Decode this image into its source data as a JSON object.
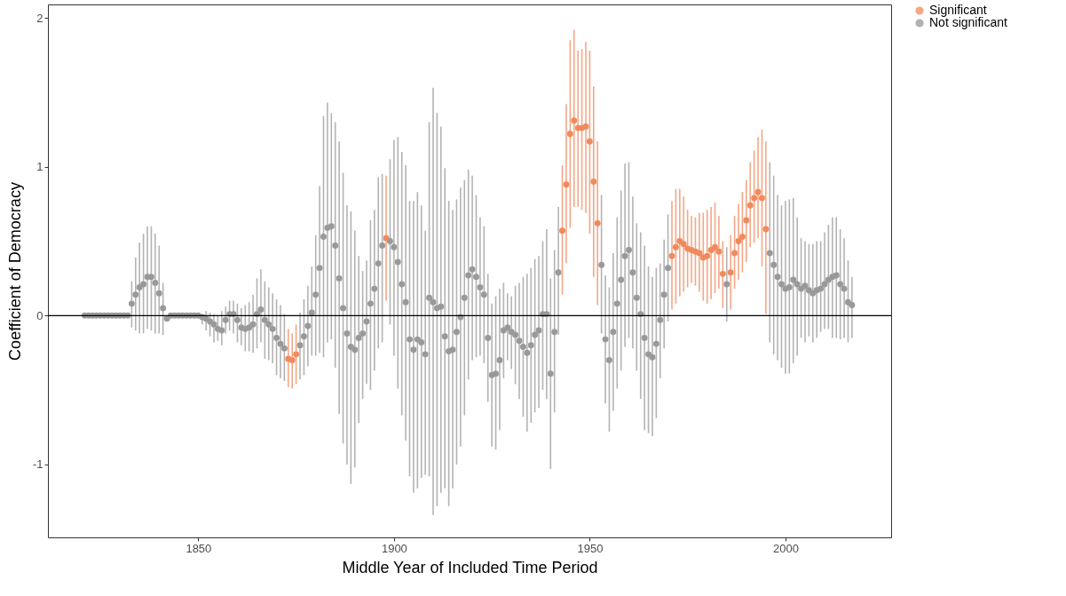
{
  "chart_data": {
    "type": "scatter",
    "xlabel": "Middle Year of Included Time Period",
    "ylabel": "Coefficient of Democracy",
    "xlim": [
      1811.6,
      2027
    ],
    "ylim": [
      -1.49,
      2.09
    ],
    "xticks": [
      1850,
      1900,
      1950,
      2000
    ],
    "yticks": [
      -1,
      0,
      1,
      2
    ],
    "grid": false,
    "legend": "right",
    "marker": "circle",
    "ref_lines": [
      {
        "axis": "y",
        "value": 0,
        "color": "#000000"
      }
    ],
    "series": [
      {
        "name": "Significant",
        "color": "#f08a5d",
        "x": [
          1873,
          1874,
          1875,
          1898,
          1943,
          1944,
          1945,
          1946,
          1947,
          1948,
          1949,
          1950,
          1951,
          1952,
          1971,
          1972,
          1973,
          1974,
          1975,
          1976,
          1977,
          1978,
          1979,
          1980,
          1981,
          1982,
          1983,
          1984,
          1986,
          1987,
          1988,
          1989,
          1990,
          1991,
          1992,
          1993,
          1994,
          1995
        ],
        "values": [
          -0.29,
          -0.3,
          -0.26,
          0.52,
          0.57,
          0.88,
          1.22,
          1.31,
          1.26,
          1.26,
          1.27,
          1.17,
          0.9,
          0.62,
          0.4,
          0.46,
          0.5,
          0.48,
          0.45,
          0.44,
          0.43,
          0.42,
          0.39,
          0.4,
          0.44,
          0.46,
          0.43,
          0.28,
          0.29,
          0.42,
          0.5,
          0.53,
          0.64,
          0.74,
          0.79,
          0.83,
          0.79,
          0.58
        ],
        "errors": [
          [
            -0.48,
            -0.09
          ],
          [
            -0.49,
            -0.12
          ],
          [
            -0.46,
            -0.06
          ],
          [
            0.1,
            0.94
          ],
          [
            0.14,
            1.01
          ],
          [
            0.35,
            1.42
          ],
          [
            0.59,
            1.85
          ],
          [
            0.73,
            1.92
          ],
          [
            0.73,
            1.78
          ],
          [
            0.71,
            1.79
          ],
          [
            0.69,
            1.84
          ],
          [
            0.55,
            1.78
          ],
          [
            0.26,
            1.54
          ],
          [
            0.07,
            1.17
          ],
          [
            0.04,
            0.77
          ],
          [
            0.08,
            0.85
          ],
          [
            0.13,
            0.85
          ],
          [
            0.16,
            0.8
          ],
          [
            0.19,
            0.71
          ],
          [
            0.22,
            0.67
          ],
          [
            0.2,
            0.66
          ],
          [
            0.16,
            0.69
          ],
          [
            0.1,
            0.69
          ],
          [
            0.08,
            0.71
          ],
          [
            0.11,
            0.73
          ],
          [
            0.15,
            0.76
          ],
          [
            0.18,
            0.67
          ],
          [
            0.05,
            0.5
          ],
          [
            0.04,
            0.54
          ],
          [
            0.18,
            0.67
          ],
          [
            0.24,
            0.75
          ],
          [
            0.29,
            0.83
          ],
          [
            0.36,
            0.91
          ],
          [
            0.46,
            1.03
          ],
          [
            0.49,
            1.11
          ],
          [
            0.52,
            1.2
          ],
          [
            0.33,
            1.25
          ],
          [
            0.01,
            1.17
          ]
        ]
      },
      {
        "name": "Not significant",
        "color": "#999999",
        "x": [
          1821,
          1822,
          1823,
          1824,
          1825,
          1826,
          1827,
          1828,
          1829,
          1830,
          1831,
          1832,
          1833,
          1834,
          1835,
          1836,
          1837,
          1838,
          1839,
          1840,
          1841,
          1842,
          1843,
          1844,
          1845,
          1846,
          1847,
          1848,
          1849,
          1850,
          1851,
          1852,
          1853,
          1854,
          1855,
          1856,
          1857,
          1858,
          1859,
          1860,
          1861,
          1862,
          1863,
          1864,
          1865,
          1866,
          1867,
          1868,
          1869,
          1870,
          1871,
          1872,
          1876,
          1877,
          1878,
          1879,
          1880,
          1881,
          1882,
          1883,
          1884,
          1885,
          1886,
          1887,
          1888,
          1889,
          1890,
          1891,
          1892,
          1893,
          1894,
          1895,
          1896,
          1897,
          1899,
          1900,
          1901,
          1902,
          1903,
          1904,
          1905,
          1906,
          1907,
          1908,
          1909,
          1910,
          1911,
          1912,
          1913,
          1914,
          1915,
          1916,
          1917,
          1918,
          1919,
          1920,
          1921,
          1922,
          1923,
          1924,
          1925,
          1926,
          1927,
          1928,
          1929,
          1930,
          1931,
          1932,
          1933,
          1934,
          1935,
          1936,
          1937,
          1938,
          1939,
          1940,
          1941,
          1942,
          1953,
          1954,
          1955,
          1956,
          1957,
          1958,
          1959,
          1960,
          1961,
          1962,
          1963,
          1964,
          1965,
          1966,
          1967,
          1968,
          1969,
          1970,
          1985,
          1996,
          1997,
          1998,
          1999,
          2000,
          2001,
          2002,
          2003,
          2004,
          2005,
          2006,
          2007,
          2008,
          2009,
          2010,
          2011,
          2012,
          2013,
          2014,
          2015,
          2016,
          2017
        ],
        "values": [
          0,
          0,
          0,
          0,
          0,
          0,
          0,
          0,
          0,
          0,
          0,
          0,
          0.08,
          0.14,
          0.19,
          0.21,
          0.26,
          0.26,
          0.22,
          0.15,
          0.05,
          -0.02,
          0,
          0,
          0,
          0,
          0,
          0,
          0,
          0,
          -0.01,
          -0.02,
          -0.04,
          -0.06,
          -0.09,
          -0.1,
          -0.03,
          0.01,
          0.01,
          -0.03,
          -0.08,
          -0.09,
          -0.08,
          -0.06,
          0.01,
          0.04,
          -0.03,
          -0.06,
          -0.09,
          -0.15,
          -0.19,
          -0.22,
          -0.2,
          -0.14,
          -0.07,
          0.02,
          0.14,
          0.32,
          0.53,
          0.59,
          0.6,
          0.47,
          0.25,
          0.05,
          -0.12,
          -0.21,
          -0.23,
          -0.15,
          -0.12,
          -0.04,
          0.08,
          0.18,
          0.35,
          0.47,
          0.5,
          0.46,
          0.36,
          0.21,
          0.09,
          -0.16,
          -0.23,
          -0.16,
          -0.18,
          -0.26,
          0.12,
          0.09,
          0.05,
          0.06,
          -0.14,
          -0.24,
          -0.23,
          -0.11,
          -0.01,
          0.12,
          0.27,
          0.31,
          0.26,
          0.19,
          0.14,
          -0.15,
          -0.4,
          -0.39,
          -0.3,
          -0.1,
          -0.08,
          -0.11,
          -0.13,
          -0.17,
          -0.21,
          -0.25,
          -0.2,
          -0.13,
          -0.1,
          0.01,
          0.01,
          -0.39,
          -0.11,
          0.29,
          0.34,
          -0.16,
          -0.3,
          -0.11,
          0.08,
          0.24,
          0.4,
          0.44,
          0.29,
          0.12,
          0.01,
          -0.15,
          -0.26,
          -0.28,
          -0.19,
          -0.03,
          0.14,
          0.32,
          0.21,
          0.42,
          0.34,
          0.26,
          0.21,
          0.18,
          0.19,
          0.24,
          0.21,
          0.18,
          0.2,
          0.17,
          0.15,
          0.17,
          0.18,
          0.21,
          0.24,
          0.26,
          0.27,
          0.21,
          0.18,
          0.09,
          0.07
        ],
        "errors": [
          null,
          null,
          null,
          null,
          null,
          null,
          null,
          null,
          null,
          null,
          null,
          null,
          [
            -0.08,
            0.23
          ],
          [
            -0.1,
            0.39
          ],
          [
            -0.12,
            0.49
          ],
          [
            -0.12,
            0.55
          ],
          [
            -0.09,
            0.6
          ],
          [
            -0.1,
            0.6
          ],
          [
            -0.12,
            0.55
          ],
          [
            -0.12,
            0.47
          ],
          [
            -0.13,
            0.22
          ],
          null,
          null,
          null,
          null,
          null,
          null,
          null,
          null,
          null,
          [
            -0.06,
            0.01
          ],
          [
            -0.1,
            0.03
          ],
          [
            -0.14,
            0.02
          ],
          [
            -0.18,
            0.01
          ],
          [
            -0.17,
            0
          ],
          [
            -0.2,
            0.03
          ],
          [
            -0.12,
            0.06
          ],
          [
            -0.1,
            0.1
          ],
          [
            -0.12,
            0.1
          ],
          [
            -0.18,
            0.08
          ],
          [
            -0.2,
            0.05
          ],
          [
            -0.24,
            0.07
          ],
          [
            -0.24,
            0.09
          ],
          [
            -0.25,
            0.14
          ],
          [
            -0.22,
            0.25
          ],
          [
            -0.18,
            0.31
          ],
          [
            -0.29,
            0.23
          ],
          [
            -0.3,
            0.19
          ],
          [
            -0.32,
            0.15
          ],
          [
            -0.4,
            0.11
          ],
          [
            -0.42,
            0.07
          ],
          [
            -0.44,
            0.01
          ],
          [
            -0.43,
            0.02
          ],
          [
            -0.4,
            0.11
          ],
          [
            -0.34,
            0.2
          ],
          [
            -0.27,
            0.33
          ],
          [
            -0.27,
            0.54
          ],
          [
            -0.25,
            0.87
          ],
          [
            -0.28,
            1.34
          ],
          [
            -0.18,
            1.43
          ],
          [
            -0.16,
            1.36
          ],
          [
            -0.35,
            1.3
          ],
          [
            -0.66,
            1.17
          ],
          [
            -0.86,
            0.96
          ],
          [
            -1.0,
            0.74
          ],
          [
            -1.13,
            0.7
          ],
          [
            -1.02,
            0.57
          ],
          [
            -0.72,
            0.4
          ],
          [
            -0.56,
            0.3
          ],
          [
            -0.46,
            0.37
          ],
          [
            -0.5,
            0.64
          ],
          [
            -0.37,
            0.71
          ],
          [
            -0.22,
            0.93
          ],
          [
            -0.18,
            0.95
          ],
          [
            -0.06,
            1.05
          ],
          [
            -0.27,
            1.18
          ],
          [
            -0.49,
            1.2
          ],
          [
            -0.67,
            1.1
          ],
          [
            -0.84,
            1.01
          ],
          [
            -1.08,
            0.77
          ],
          [
            -1.19,
            0.77
          ],
          [
            -1.16,
            0.83
          ],
          [
            -1.09,
            0.74
          ],
          [
            -1.07,
            0.57
          ],
          [
            -1.08,
            1.3
          ],
          [
            -1.34,
            1.53
          ],
          [
            -1.28,
            1.36
          ],
          [
            -1.19,
            1.27
          ],
          [
            -1.16,
            0.99
          ],
          [
            -1.28,
            0.77
          ],
          [
            -1.16,
            0.71
          ],
          [
            -1.0,
            0.78
          ],
          [
            -0.88,
            0.86
          ],
          [
            -0.67,
            0.91
          ],
          [
            -0.43,
            0.98
          ],
          [
            -0.3,
            0.94
          ],
          [
            -0.28,
            0.81
          ],
          [
            -0.27,
            0.66
          ],
          [
            -0.32,
            0.6
          ],
          [
            -0.58,
            0.28
          ],
          [
            -0.88,
            0.08
          ],
          [
            -0.9,
            0.13
          ],
          [
            -0.77,
            0.18
          ],
          [
            -0.42,
            0.22
          ],
          [
            -0.3,
            0.15
          ],
          [
            -0.36,
            0.13
          ],
          [
            -0.46,
            0.2
          ],
          [
            -0.56,
            0.22
          ],
          [
            -0.68,
            0.26
          ],
          [
            -0.78,
            0.28
          ],
          [
            -0.72,
            0.32
          ],
          [
            -0.65,
            0.38
          ],
          [
            -0.62,
            0.4
          ],
          [
            -0.5,
            0.5
          ],
          [
            -0.56,
            0.58
          ],
          [
            -1.03,
            0.25
          ],
          [
            -0.65,
            0.44
          ],
          [
            -0.13,
            0.73
          ],
          [
            -0.12,
            0.81
          ],
          [
            -0.59,
            0.27
          ],
          [
            -0.78,
            0.19
          ],
          [
            -0.64,
            0.42
          ],
          [
            -0.49,
            0.66
          ],
          [
            -0.37,
            0.84
          ],
          [
            -0.21,
            1.02
          ],
          [
            -0.15,
            1.03
          ],
          [
            -0.22,
            0.8
          ],
          [
            -0.37,
            0.62
          ],
          [
            -0.56,
            0.56
          ],
          [
            -0.77,
            0.47
          ],
          [
            -0.79,
            0.33
          ],
          [
            -0.81,
            0.26
          ],
          [
            -0.69,
            0.32
          ],
          [
            -0.42,
            0.35
          ],
          [
            -0.22,
            0.51
          ],
          [
            -0.04,
            0.68
          ],
          [
            -0.04,
            0.46
          ],
          [
            -0.18,
            1.03
          ],
          [
            -0.26,
            0.94
          ],
          [
            -0.3,
            0.81
          ],
          [
            -0.35,
            0.74
          ],
          [
            -0.39,
            0.77
          ],
          [
            -0.39,
            0.78
          ],
          [
            -0.32,
            0.79
          ],
          [
            -0.27,
            0.66
          ],
          [
            -0.15,
            0.52
          ],
          [
            -0.18,
            0.5
          ],
          [
            -0.14,
            0.48
          ],
          [
            -0.18,
            0.48
          ],
          [
            -0.15,
            0.5
          ],
          [
            -0.11,
            0.5
          ],
          [
            -0.09,
            0.56
          ],
          [
            -0.09,
            0.61
          ],
          [
            -0.15,
            0.66
          ],
          [
            -0.15,
            0.66
          ],
          [
            -0.16,
            0.58
          ],
          [
            -0.15,
            0.52
          ],
          [
            -0.18,
            0.37
          ],
          [
            -0.15,
            0.26
          ]
        ]
      }
    ]
  }
}
